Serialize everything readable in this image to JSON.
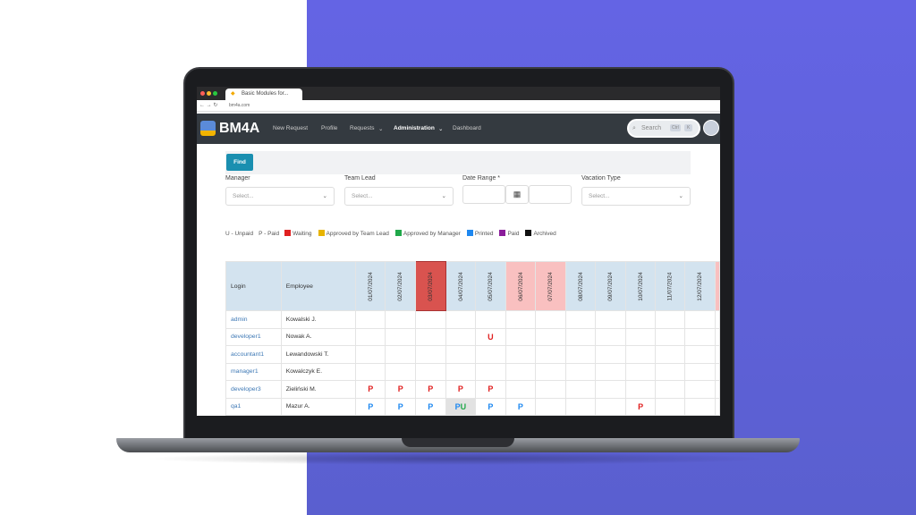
{
  "browser": {
    "tab_title": "Basic Modules for...",
    "url": "bm4a.com"
  },
  "nav": {
    "logo": "BM4A",
    "items": [
      "New Request",
      "Profile",
      "Requests",
      "Administration",
      "Dashboard"
    ],
    "search_placeholder": "Search",
    "shortcut": [
      "Ctrl",
      "K"
    ]
  },
  "filters": {
    "find_label": "Find",
    "manager": {
      "label": "Manager",
      "placeholder": "Select..."
    },
    "team_lead": {
      "label": "Team Lead",
      "placeholder": "Select..."
    },
    "date_range": {
      "label": "Date Range *"
    },
    "vacation_type": {
      "label": "Vacation Type",
      "placeholder": "Select..."
    }
  },
  "legend": {
    "unpaid": "U - Unpaid",
    "paid": "P - Paid",
    "statuses": [
      {
        "label": "Waiting",
        "color": "#e02020"
      },
      {
        "label": "Approved by Team Lead",
        "color": "#e8b400"
      },
      {
        "label": "Approved by Manager",
        "color": "#20a84a"
      },
      {
        "label": "Printed",
        "color": "#1e88f0"
      },
      {
        "label": "Paid",
        "color": "#8a1c9a"
      },
      {
        "label": "Archived",
        "color": "#111111"
      }
    ]
  },
  "table": {
    "headers": {
      "login": "Login",
      "employee": "Employee"
    },
    "dates": [
      {
        "d": "01/07/2024"
      },
      {
        "d": "02/07/2024"
      },
      {
        "d": "03/07/2024",
        "hl": "red"
      },
      {
        "d": "04/07/2024"
      },
      {
        "d": "05/07/2024"
      },
      {
        "d": "06/07/2024",
        "hl": "pink"
      },
      {
        "d": "07/07/2024",
        "hl": "pink"
      },
      {
        "d": "08/07/2024"
      },
      {
        "d": "09/07/2024"
      },
      {
        "d": "10/07/2024"
      },
      {
        "d": "11/07/2024"
      },
      {
        "d": "12/07/2024"
      }
    ],
    "rows": [
      {
        "login": "admin",
        "employee": "Kowalski J.",
        "cells": {}
      },
      {
        "login": "developer1",
        "employee": "Nowak A.",
        "cells": {
          "4": [
            [
              "U",
              "#e02020"
            ]
          ]
        }
      },
      {
        "login": "accountant1",
        "employee": "Lewandowski T.",
        "cells": {}
      },
      {
        "login": "manager1",
        "employee": "Kowalczyk E.",
        "cells": {}
      },
      {
        "login": "developer3",
        "employee": "Zieliński M.",
        "cells": {
          "0": [
            [
              "P",
              "#e02020"
            ]
          ],
          "1": [
            [
              "P",
              "#e02020"
            ]
          ],
          "2": [
            [
              "P",
              "#e02020"
            ]
          ],
          "3": [
            [
              "P",
              "#e02020"
            ]
          ],
          "4": [
            [
              "P",
              "#e02020"
            ]
          ]
        }
      },
      {
        "login": "qa1",
        "employee": "Mazur A.",
        "cells": {
          "0": [
            [
              "P",
              "#1e88f0"
            ]
          ],
          "1": [
            [
              "P",
              "#1e88f0"
            ]
          ],
          "2": [
            [
              "P",
              "#1e88f0"
            ]
          ],
          "3": [
            [
              "P",
              "#1e88f0"
            ],
            [
              "U",
              "#20a84a"
            ]
          ],
          "4": [
            [
              "P",
              "#1e88f0"
            ]
          ],
          "5": [
            [
              "P",
              "#1e88f0"
            ]
          ],
          "9": [
            [
              "P",
              "#e02020"
            ]
          ]
        }
      }
    ]
  }
}
